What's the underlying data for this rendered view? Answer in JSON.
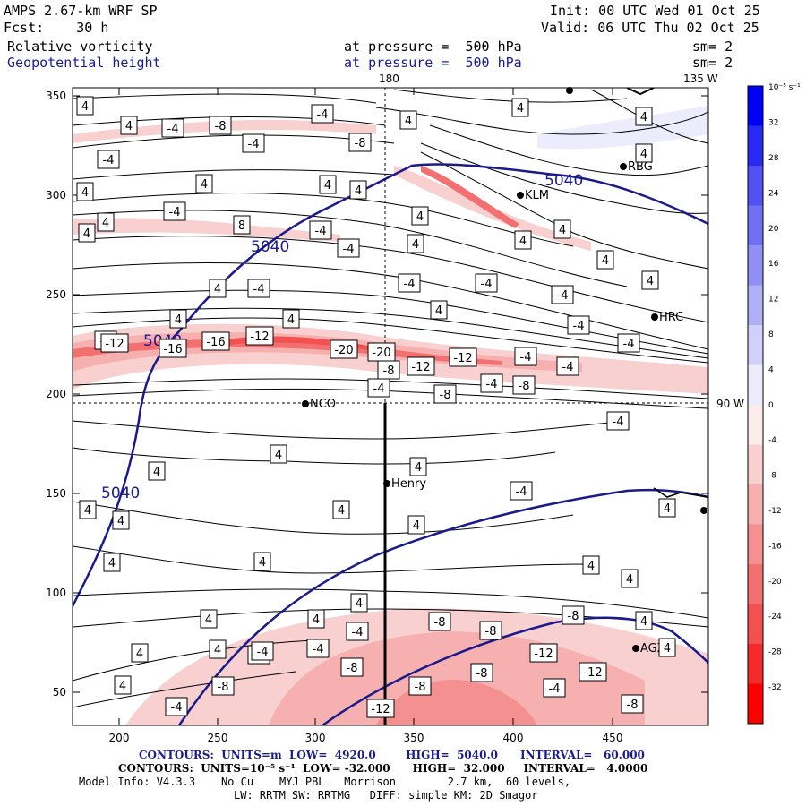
{
  "header": {
    "model": "AMPS 2.67-km WRF SP",
    "forecast": "Fcst:    30 h",
    "init": "Init: 00 UTC Wed 01 Oct 25",
    "valid": "Valid: 06 UTC Thu 02 Oct 25",
    "field1": "Relative vorticity",
    "field1_pressure": "at pressure =  500 hPa",
    "field1_smooth": "sm= 2",
    "field2": "Geopotential height",
    "field2_pressure": "at pressure =  500 hPa",
    "field2_smooth": "sm= 2"
  },
  "map": {
    "grid_labels": {
      "lon180": "180",
      "lon135w": "135 W",
      "lon90w": "90 W"
    },
    "x_ticks": [
      "200",
      "250",
      "300",
      "350",
      "400",
      "450"
    ],
    "y_ticks": [
      "350",
      "300",
      "250",
      "200",
      "150",
      "100",
      "50"
    ],
    "stations": [
      {
        "name": "Henry"
      },
      {
        "name": "NCO"
      },
      {
        "name": "KLM"
      },
      {
        "name": "RBG"
      },
      {
        "name": "HRC"
      },
      {
        "name": "AGZ"
      }
    ],
    "height_labels": [
      "5040",
      "5040",
      "5040",
      "5040"
    ],
    "vorticity_labels": [
      "4",
      "-4",
      "4",
      "-8",
      "4",
      "-4",
      "4",
      "4",
      "8",
      "-4",
      "-8",
      "4",
      "4",
      "4",
      "-4",
      "4",
      "4",
      "4",
      "4",
      "-4",
      "4",
      "-4",
      "4",
      "-4",
      "-4",
      "4",
      "4",
      "-4",
      "4",
      "4",
      "-4",
      "-4",
      "4",
      "-4",
      "-4",
      "4",
      "-4",
      "4",
      "-4",
      "4",
      "4",
      "-4",
      "-12",
      "-16",
      "-16",
      "-12",
      "-8",
      "-20",
      "-20",
      "-12",
      "-12",
      "-4",
      "-4",
      "-8",
      "-4",
      "-8",
      "4",
      "4",
      "-4",
      "4",
      "4",
      "4",
      "4",
      "4",
      "4",
      "4",
      "4",
      "4",
      "4",
      "4",
      "4",
      "4",
      "4",
      "4",
      "-4",
      "4",
      "4",
      "-4",
      "-4",
      "-8",
      "-4",
      "-8",
      "-8",
      "-8",
      "-12",
      "-12",
      "-8",
      "-8",
      "-4",
      "-8",
      "-12",
      "-8",
      "-4"
    ]
  },
  "colorbar": {
    "unit": "10⁻⁵ s⁻¹",
    "levels": [
      "32",
      "28",
      "24",
      "20",
      "16",
      "12",
      "8",
      "4",
      "0",
      "-4",
      "-8",
      "-12",
      "-16",
      "-20",
      "-24",
      "-28",
      "-32"
    ],
    "colors": [
      "#0000ff",
      "#2a2af5",
      "#5050f3",
      "#7070f3",
      "#9090f4",
      "#b0b0f6",
      "#d0d0f8",
      "#ececfc",
      "#fcecec",
      "#f8d0d0",
      "#f6b0b0",
      "#f49090",
      "#f37070",
      "#f35050",
      "#f52a2a",
      "#ff0000"
    ]
  },
  "footer": {
    "contours1": "CONTOURS:  UNITS=m  LOW=  4920.0        HIGH=  5040.0      INTERVAL=   60.000",
    "contours2": "CONTOURS:  UNITS=10⁻⁵ s⁻¹  LOW= -32.000      HIGH=  32.000     INTERVAL=   4.0000",
    "model_info": "Model Info: V4.3.3    No Cu    MYJ PBL   Morrison        2.7 km,  60 levels,",
    "physics": "LW: RRTM SW: RRTMG   DIFF: simple KM: 2D Smagor"
  },
  "colors": {
    "height_contour": "#1a1a8c",
    "frame": "#000000"
  }
}
